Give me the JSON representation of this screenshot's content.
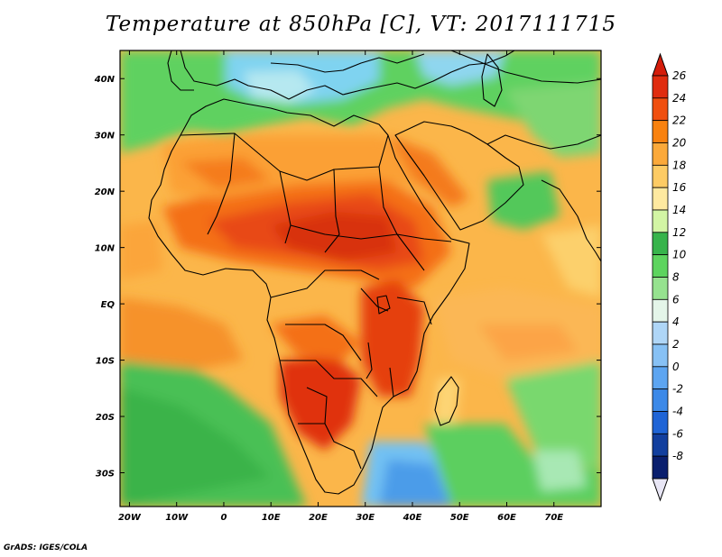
{
  "title": "Temperature at 850hPa [C], VT: 2017111715",
  "credit": "GrADS: IGES/COLA",
  "map": {
    "lon_labels": [
      "20W",
      "10W",
      "0",
      "10E",
      "20E",
      "30E",
      "40E",
      "50E",
      "60E",
      "70E"
    ],
    "lat_labels": [
      "40N",
      "30N",
      "20N",
      "10N",
      "EQ",
      "10S",
      "20S",
      "30S"
    ],
    "extent": {
      "lon_min": -22,
      "lon_max": 80,
      "lat_min": -36,
      "lat_max": 45
    }
  },
  "colorbar": {
    "labels": [
      "26",
      "24",
      "22",
      "20",
      "18",
      "16",
      "14",
      "12",
      "10",
      "8",
      "6",
      "4",
      "2",
      "0",
      "-2",
      "-4",
      "-6",
      "-8"
    ],
    "colors": [
      "#e02c0f",
      "#f04f0f",
      "#f9820f",
      "#fba93a",
      "#fdcb64",
      "#fee9a0",
      "#d2f5a4",
      "#37b44b",
      "#5dd45e",
      "#96e28f",
      "#e4f5e9",
      "#afd6f7",
      "#87c1f5",
      "#5da5f1",
      "#3c89e8",
      "#1f64d6",
      "#123f9e",
      "#0a1f6e"
    ],
    "top_arrow_color": "#d41c0a",
    "bottom_arrow_color": "#e8e6f5"
  }
}
